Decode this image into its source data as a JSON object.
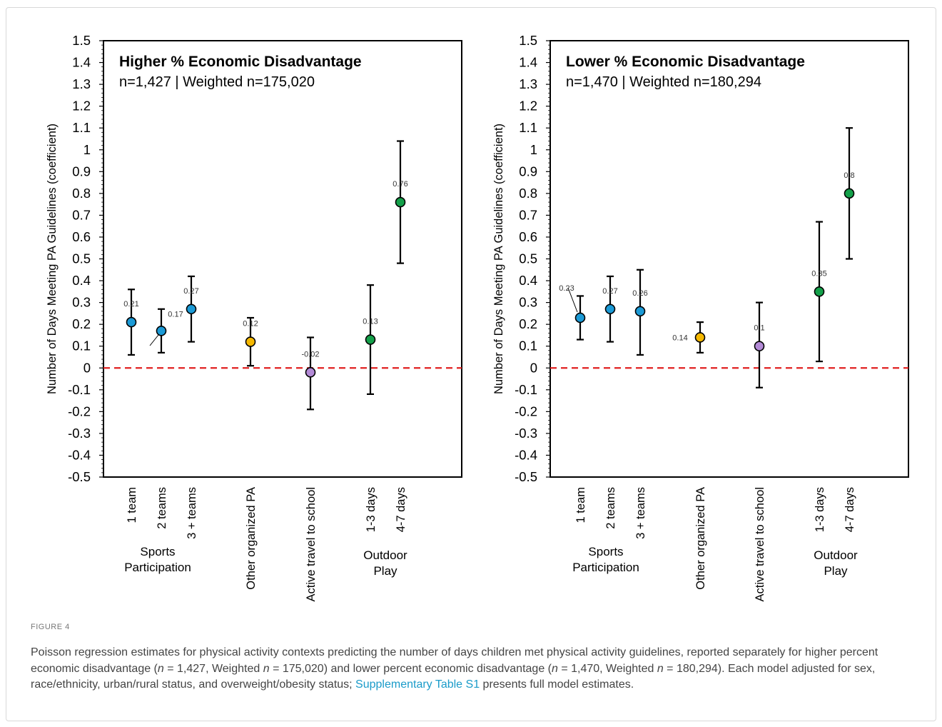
{
  "chart_data": [
    {
      "type": "scatter",
      "title": "Higher % Economic Disadvantage",
      "subtitle": "n=1,427 | Weighted n=175,020",
      "ylabel": "Number of Days Meeting PA Guidelines (coefficient)",
      "ylim": [
        -0.5,
        1.5
      ],
      "ytick_step": 0.1,
      "reference_line": 0,
      "points": [
        {
          "label": "1 team",
          "value": 0.21,
          "lower": 0.06,
          "upper": 0.36,
          "value_label": "0.21",
          "color": "#1b9ad6",
          "group": "sports"
        },
        {
          "label": "2 teams",
          "value": 0.17,
          "lower": 0.07,
          "upper": 0.27,
          "value_label": "0.17",
          "color": "#1b9ad6",
          "group": "sports"
        },
        {
          "label": "3 + teams",
          "value": 0.27,
          "lower": 0.12,
          "upper": 0.42,
          "value_label": "0.27",
          "color": "#1b9ad6",
          "group": "sports"
        },
        {
          "label": "Other organized PA",
          "value": 0.12,
          "lower": 0.01,
          "upper": 0.23,
          "value_label": "0.12",
          "color": "#f5b800",
          "group": "other"
        },
        {
          "label": "Active travel to school",
          "value": -0.02,
          "lower": -0.19,
          "upper": 0.14,
          "value_label": "-0.02",
          "color": "#b38ad6",
          "group": "travel"
        },
        {
          "label": "1-3 days",
          "value": 0.13,
          "lower": -0.12,
          "upper": 0.38,
          "value_label": "0.13",
          "color": "#14a04a",
          "group": "outdoor"
        },
        {
          "label": "4-7 days",
          "value": 0.76,
          "lower": 0.48,
          "upper": 1.04,
          "value_label": "0.76",
          "color": "#14a04a",
          "group": "outdoor"
        }
      ],
      "group_labels": [
        {
          "lines": [
            "Sports",
            "Participation"
          ]
        },
        {
          "lines": [
            "Outdoor",
            "Play"
          ]
        }
      ]
    },
    {
      "type": "scatter",
      "title": "Lower % Economic Disadvantage",
      "subtitle": "n=1,470 | Weighted n=180,294",
      "ylabel": "Number of Days Meeting PA Guidelines (coefficient)",
      "ylim": [
        -0.5,
        1.5
      ],
      "ytick_step": 0.1,
      "reference_line": 0,
      "points": [
        {
          "label": "1 team",
          "value": 0.23,
          "lower": 0.13,
          "upper": 0.33,
          "value_label": "0.23",
          "color": "#1b9ad6",
          "group": "sports"
        },
        {
          "label": "2 teams",
          "value": 0.27,
          "lower": 0.12,
          "upper": 0.42,
          "value_label": "0.27",
          "color": "#1b9ad6",
          "group": "sports"
        },
        {
          "label": "3 + teams",
          "value": 0.26,
          "lower": 0.06,
          "upper": 0.45,
          "value_label": "0.26",
          "color": "#1b9ad6",
          "group": "sports"
        },
        {
          "label": "Other organized PA",
          "value": 0.14,
          "lower": 0.07,
          "upper": 0.21,
          "value_label": "0.14",
          "color": "#f5b800",
          "group": "other"
        },
        {
          "label": "Active travel to school",
          "value": 0.1,
          "lower": -0.09,
          "upper": 0.3,
          "value_label": "0.1",
          "color": "#b38ad6",
          "group": "travel"
        },
        {
          "label": "1-3 days",
          "value": 0.35,
          "lower": 0.03,
          "upper": 0.67,
          "value_label": "0.35",
          "color": "#14a04a",
          "group": "outdoor"
        },
        {
          "label": "4-7 days",
          "value": 0.8,
          "lower": 0.5,
          "upper": 1.1,
          "value_label": "0.8",
          "color": "#14a04a",
          "group": "outdoor"
        }
      ],
      "group_labels": [
        {
          "lines": [
            "Sports",
            "Participation"
          ]
        },
        {
          "lines": [
            "Outdoor",
            "Play"
          ]
        }
      ]
    }
  ],
  "figure": {
    "label": "FIGURE 4",
    "caption_1": "Poisson regression estimates for physical activity contexts predicting the number of days children met physical activity guidelines, reported separately for higher percent economic disadvantage (",
    "n1": "n",
    "caption_2": " = 1,427, Weighted ",
    "n2": "n",
    "caption_3": " = 175,020) and lower percent economic disadvantage (",
    "n3": "n",
    "caption_4": " = 1,470, Weighted ",
    "n4": "n",
    "caption_5": " = 180,294). Each model adjusted for sex, race/ethnicity, urban/rural status, and overweight/obesity status; ",
    "link": "Supplementary Table S1",
    "caption_6": " presents full model estimates."
  }
}
